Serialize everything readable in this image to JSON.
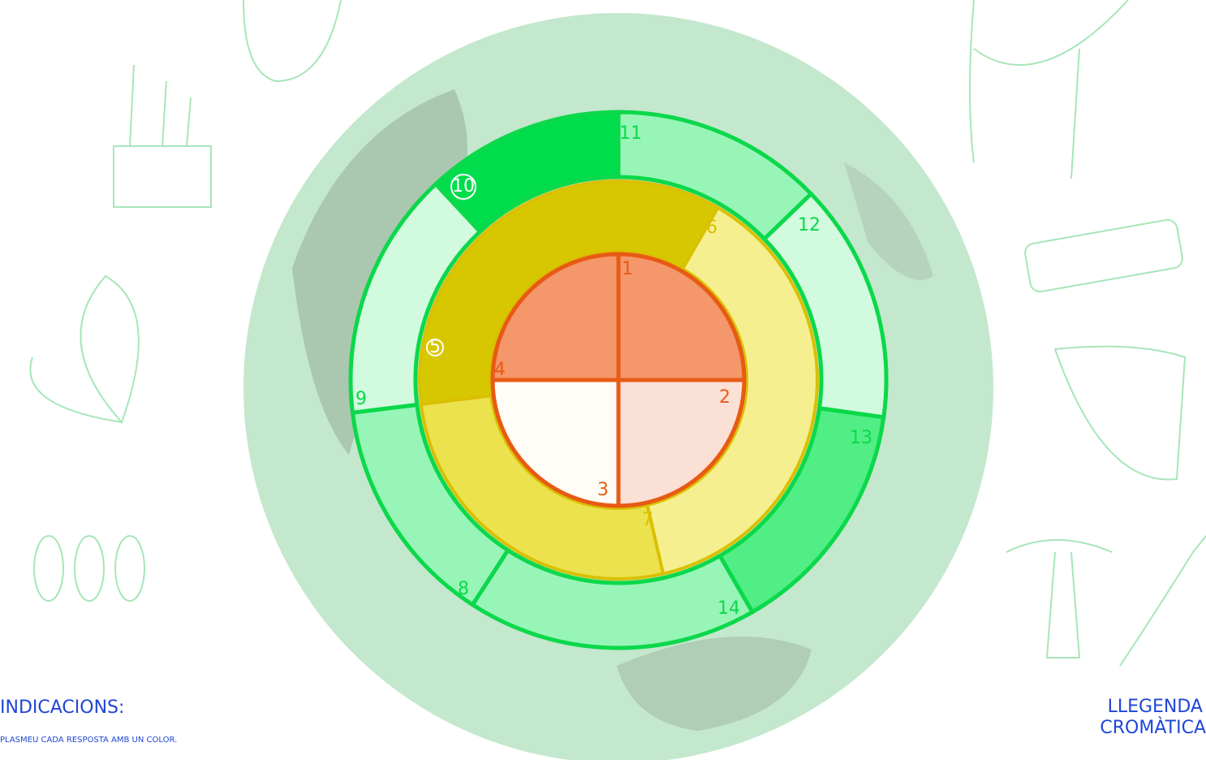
{
  "diagram": {
    "labels": [
      "1",
      "2",
      "3",
      "4",
      "5",
      "6",
      "7",
      "8",
      "9",
      "10",
      "11",
      "12",
      "13",
      "14"
    ]
  },
  "instructions": {
    "title": "INDICACIONS:",
    "text": "PLASMEU CADA RESPOSTA AMB UN COLOR."
  },
  "legend": {
    "title_lines": [
      "LLEGENDA",
      "CROMÀTICA"
    ]
  }
}
